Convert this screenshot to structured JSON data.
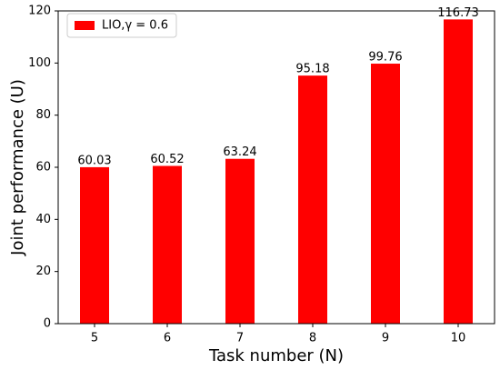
{
  "chart_data": {
    "type": "bar",
    "x_label": "Task number (N)",
    "y_label": "Joint performance (U)",
    "categories": [
      "5",
      "6",
      "7",
      "8",
      "9",
      "10"
    ],
    "series": [
      {
        "name": "LIO,γ = 0.6",
        "color": "#ff0000",
        "values": [
          60.03,
          60.52,
          63.24,
          95.18,
          99.76,
          116.73
        ]
      }
    ],
    "ylim": [
      0,
      120
    ],
    "yticks": [
      0,
      20,
      40,
      60,
      80,
      100,
      120
    ],
    "legend": "upper left"
  }
}
